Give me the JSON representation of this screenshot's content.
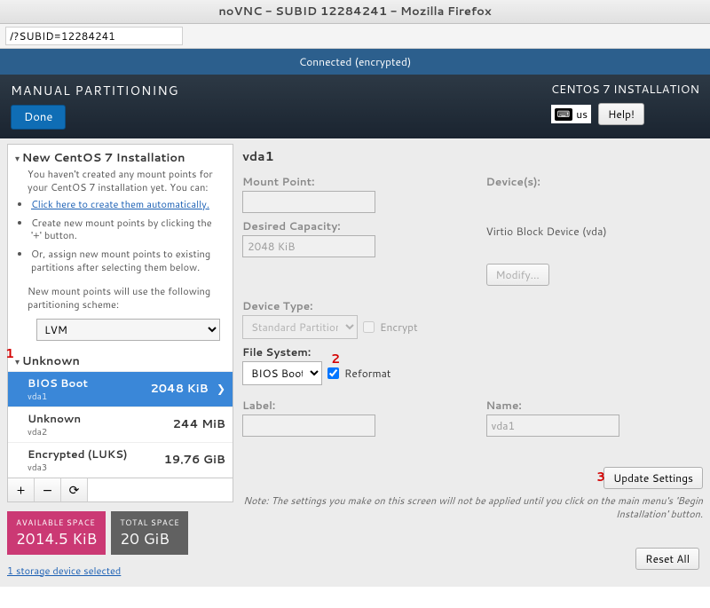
{
  "window": {
    "title": "noVNC - SUBID 12284241 - Mozilla Firefox"
  },
  "urlbar": {
    "value": "/?SUBID=12284241"
  },
  "vnc": {
    "status": "Connected (encrypted)"
  },
  "header": {
    "title": "MANUAL PARTITIONING",
    "done": "Done",
    "product": "CENTOS 7 INSTALLATION",
    "lang": "us",
    "help": "Help!"
  },
  "left": {
    "new_install_hdr": "New CentOS 7 Installation",
    "intro": "You haven't created any mount points for your CentOS 7 installation yet.  You can:",
    "bullet_auto": "Click here to create them automatically.",
    "bullet_plus": "Create new mount points by clicking the '+' button.",
    "bullet_assign": "Or, assign new mount points to existing partitions after selecting them below.",
    "scheme_note": "New mount points will use the following partitioning scheme:",
    "scheme_value": "LVM",
    "unknown_hdr": "Unknown",
    "partitions": [
      {
        "name": "BIOS Boot",
        "dev": "vda1",
        "size": "2048 KiB",
        "selected": true
      },
      {
        "name": "Unknown",
        "dev": "vda2",
        "size": "244 MiB",
        "selected": false
      },
      {
        "name": "Encrypted (LUKS)",
        "dev": "vda3",
        "size": "19.76 GiB",
        "selected": false
      }
    ],
    "add": "+",
    "remove": "−",
    "reload": "⟳",
    "avail_lbl": "AVAILABLE SPACE",
    "avail_val": "2014.5 KiB",
    "total_lbl": "TOTAL SPACE",
    "total_val": "20 GiB",
    "storage_link": "1 storage device selected"
  },
  "right": {
    "title": "vda1",
    "mount_lbl": "Mount Point:",
    "mount_val": "",
    "devices_lbl": "Device(s):",
    "capacity_lbl": "Desired Capacity:",
    "capacity_val": "2048 KiB",
    "device_desc": "Virtio Block Device (vda)",
    "modify": "Modify...",
    "devtype_lbl": "Device Type:",
    "devtype_val": "Standard Partition",
    "encrypt_lbl": "Encrypt",
    "fs_lbl": "File System:",
    "fs_val": "BIOS Boot",
    "reformat_lbl": "Reformat",
    "label_lbl": "Label:",
    "label_val": "",
    "name_lbl": "Name:",
    "name_val": "vda1",
    "update": "Update Settings",
    "note": "Note:  The settings you make on this screen will not be applied until you click on the main menu's 'Begin Installation' button.",
    "reset": "Reset All"
  },
  "callouts": {
    "c1": "1",
    "c2": "2",
    "c3": "3"
  }
}
